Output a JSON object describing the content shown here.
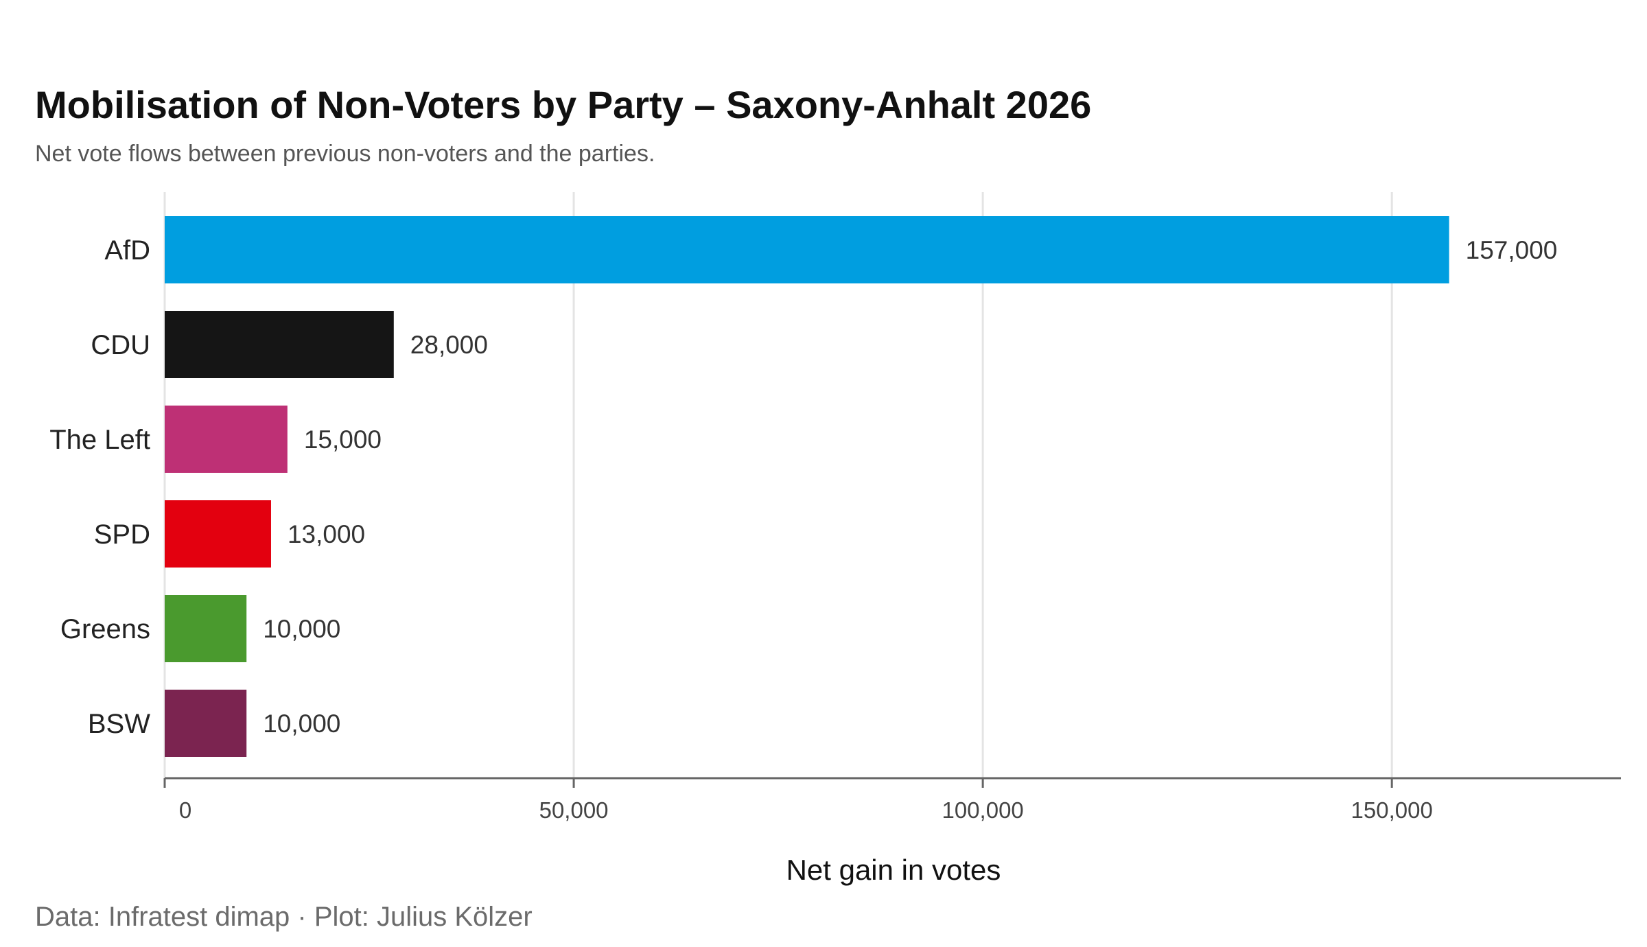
{
  "title": "Mobilisation of Non-Voters by Party – Saxony-Anhalt 2026",
  "subtitle": "Net vote flows between previous non-voters and the parties.",
  "caption": "Data: Infratest dimap · Plot: Julius Kölzer",
  "chart_data": {
    "type": "bar",
    "orientation": "horizontal",
    "categories": [
      "AfD",
      "CDU",
      "The Left",
      "SPD",
      "Greens",
      "BSW"
    ],
    "values": [
      157000,
      28000,
      15000,
      13000,
      10000,
      10000
    ],
    "value_labels": [
      "157,000",
      "28,000",
      "15,000",
      "13,000",
      "10,000",
      "10,000"
    ],
    "colors": [
      "#009EE0",
      "#151515",
      "#BE3075",
      "#E3000F",
      "#4A9A2E",
      "#7B2450"
    ],
    "xlabel": "Net gain in votes",
    "ylabel": "",
    "xlim": [
      0,
      178000
    ],
    "xticks": [
      0,
      50000,
      100000,
      150000
    ],
    "xtick_labels": [
      "0",
      "50,000",
      "100,000",
      "150,000"
    ],
    "grid": "vertical major gridlines",
    "legend": "none"
  }
}
